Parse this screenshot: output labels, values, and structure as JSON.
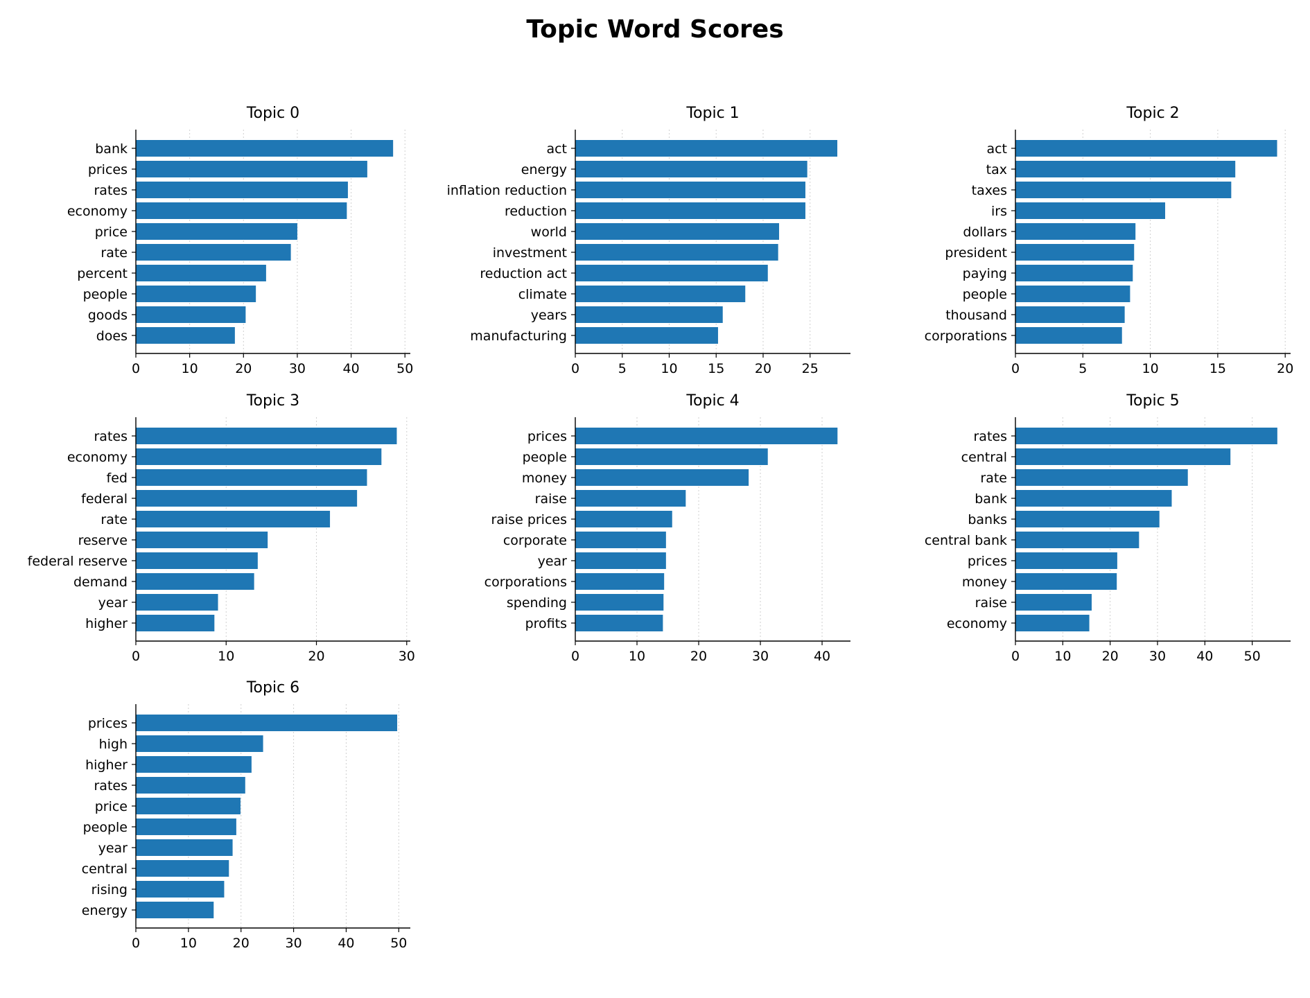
{
  "title": "Topic Word Scores",
  "colors": {
    "bar": "#1f77b4",
    "grid": "#cfcfcf",
    "axis": "#000000"
  },
  "chart_data": [
    {
      "type": "bar",
      "orientation": "horizontal",
      "title": "Topic 0",
      "categories": [
        "bank",
        "prices",
        "rates",
        "economy",
        "price",
        "rate",
        "percent",
        "people",
        "goods",
        "does"
      ],
      "values": [
        47.8,
        43.0,
        39.4,
        39.2,
        30.0,
        28.8,
        24.2,
        22.3,
        20.4,
        18.4
      ],
      "xlim": [
        0,
        51
      ],
      "xticks": [
        0,
        10,
        20,
        30,
        40,
        50
      ],
      "grid": "x-dotted"
    },
    {
      "type": "bar",
      "orientation": "horizontal",
      "title": "Topic 1",
      "categories": [
        "act",
        "energy",
        "inflation reduction",
        "reduction",
        "world",
        "investment",
        "reduction act",
        "climate",
        "years",
        "manufacturing"
      ],
      "values": [
        27.9,
        24.7,
        24.5,
        24.5,
        21.7,
        21.6,
        20.5,
        18.1,
        15.7,
        15.2
      ],
      "xlim": [
        0,
        29.3
      ],
      "xticks": [
        0,
        5,
        10,
        15,
        20,
        25
      ],
      "grid": "x-dotted"
    },
    {
      "type": "bar",
      "orientation": "horizontal",
      "title": "Topic 2",
      "categories": [
        "act",
        "tax",
        "taxes",
        "irs",
        "dollars",
        "president",
        "paying",
        "people",
        "thousand",
        "corporations"
      ],
      "values": [
        19.4,
        16.3,
        16.0,
        11.1,
        8.9,
        8.8,
        8.7,
        8.5,
        8.1,
        7.9
      ],
      "xlim": [
        0,
        20.4
      ],
      "xticks": [
        0,
        5,
        10,
        15,
        20
      ],
      "grid": "x-dotted"
    },
    {
      "type": "bar",
      "orientation": "horizontal",
      "title": "Topic 3",
      "categories": [
        "rates",
        "economy",
        "fed",
        "federal",
        "rate",
        "reserve",
        "federal reserve",
        "demand",
        "year",
        "higher"
      ],
      "values": [
        28.9,
        27.2,
        25.6,
        24.5,
        21.5,
        14.6,
        13.5,
        13.1,
        9.1,
        8.7
      ],
      "xlim": [
        0,
        30.4
      ],
      "xticks": [
        0,
        10,
        20,
        30
      ],
      "grid": "x-dotted"
    },
    {
      "type": "bar",
      "orientation": "horizontal",
      "title": "Topic 4",
      "categories": [
        "prices",
        "people",
        "money",
        "raise",
        "raise prices",
        "corporate",
        "year",
        "corporations",
        "spending",
        "profits"
      ],
      "values": [
        42.5,
        31.2,
        28.1,
        17.9,
        15.7,
        14.7,
        14.7,
        14.4,
        14.3,
        14.2
      ],
      "xlim": [
        0,
        44.6
      ],
      "xticks": [
        0,
        10,
        20,
        30,
        40
      ],
      "grid": "x-dotted"
    },
    {
      "type": "bar",
      "orientation": "horizontal",
      "title": "Topic 5",
      "categories": [
        "rates",
        "central",
        "rate",
        "bank",
        "banks",
        "central bank",
        "prices",
        "money",
        "raise",
        "economy"
      ],
      "values": [
        55.3,
        45.4,
        36.4,
        33.0,
        30.4,
        26.1,
        21.5,
        21.4,
        16.1,
        15.6
      ],
      "xlim": [
        0,
        58.1
      ],
      "xticks": [
        0,
        10,
        20,
        30,
        40,
        50
      ],
      "grid": "x-dotted"
    },
    {
      "type": "bar",
      "orientation": "horizontal",
      "title": "Topic 6",
      "categories": [
        "prices",
        "high",
        "higher",
        "rates",
        "price",
        "people",
        "year",
        "central",
        "rising",
        "energy"
      ],
      "values": [
        49.7,
        24.2,
        22.0,
        20.8,
        19.9,
        19.1,
        18.4,
        17.7,
        16.8,
        14.8
      ],
      "xlim": [
        0,
        52.2
      ],
      "xticks": [
        0,
        10,
        20,
        30,
        40,
        50
      ],
      "grid": "x-dotted"
    }
  ]
}
